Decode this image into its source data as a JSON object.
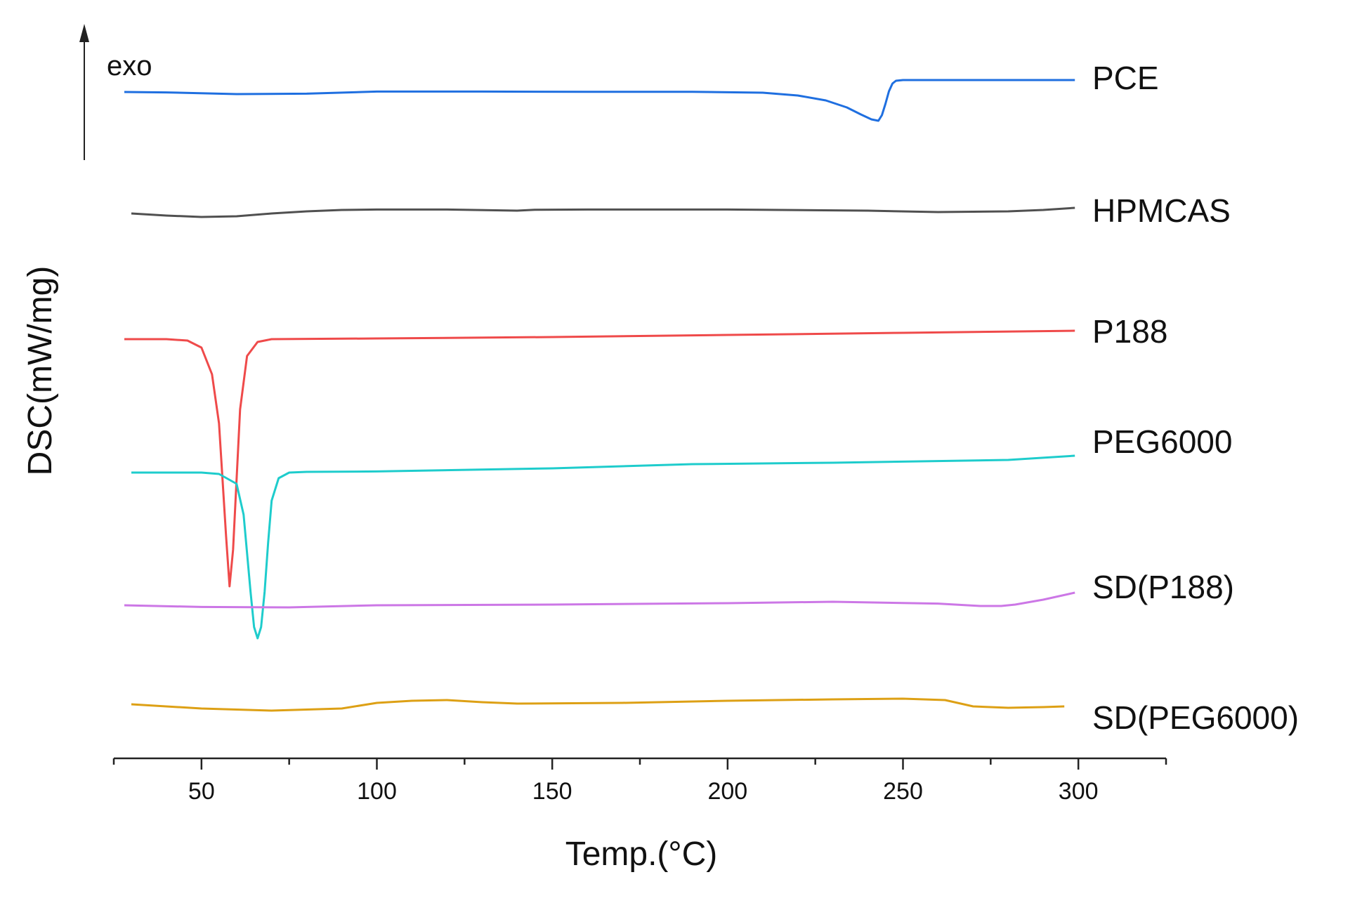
{
  "chart_data": {
    "type": "line",
    "title": "",
    "xlabel": "Temp.(°C)",
    "ylabel": "DSC(mW/mg)",
    "exo_label": "exo",
    "xlim": [
      25,
      325
    ],
    "xticks": [
      50,
      100,
      150,
      200,
      250,
      300
    ],
    "xtick_labels": [
      "50",
      "100",
      "150",
      "200",
      "250",
      "300"
    ],
    "grid": false,
    "series": [
      {
        "name": "PCE",
        "color": "#1f6fe0",
        "offset": 0,
        "x": [
          28,
          40,
          60,
          80,
          100,
          130,
          160,
          190,
          210,
          220,
          228,
          234,
          238,
          241,
          243,
          244,
          245,
          246,
          247,
          248,
          250,
          260,
          280,
          299
        ],
        "y": [
          1.5,
          1.2,
          0.0,
          0.3,
          1.8,
          1.8,
          1.6,
          1.6,
          1.0,
          -1.0,
          -4.5,
          -9.5,
          -14.5,
          -18.0,
          -19.0,
          -15.0,
          -7.0,
          2.0,
          7.5,
          9.5,
          10.0,
          10.0,
          10.0,
          10.0
        ]
      },
      {
        "name": "HPMCAS",
        "color": "#505050",
        "offset": 1,
        "x": [
          30,
          40,
          50,
          60,
          70,
          80,
          90,
          100,
          120,
          140,
          145,
          160,
          200,
          240,
          260,
          280,
          290,
          299
        ],
        "y": [
          0.0,
          -1.5,
          -2.5,
          -2.0,
          0.0,
          1.5,
          2.5,
          2.8,
          2.8,
          2.0,
          2.6,
          2.8,
          2.8,
          2.0,
          1.0,
          1.5,
          2.5,
          4.0
        ]
      },
      {
        "name": "P188",
        "color": "#ef4a4a",
        "offset": 2,
        "x": [
          28,
          40,
          46,
          50,
          53,
          55,
          56,
          57,
          58,
          59,
          60,
          61,
          63,
          66,
          70,
          100,
          150,
          200,
          250,
          299
        ],
        "y": [
          0.0,
          0.0,
          -1.0,
          -6.0,
          -25.0,
          -60.0,
          -100.0,
          -140.0,
          -176.0,
          -150.0,
          -100.0,
          -50.0,
          -12.0,
          -2.0,
          0.0,
          0.5,
          1.5,
          3.0,
          4.5,
          6.0
        ]
      },
      {
        "name": "PEG6000",
        "color": "#1ecccc",
        "offset": 3,
        "x": [
          30,
          50,
          55,
          60,
          62,
          64,
          65,
          66,
          67,
          68,
          69,
          70,
          72,
          75,
          80,
          100,
          150,
          190,
          230,
          280,
          299
        ],
        "y": [
          0.0,
          0.0,
          -1.0,
          -8.0,
          -30.0,
          -85.0,
          -110.0,
          -118.0,
          -110.0,
          -85.0,
          -50.0,
          -20.0,
          -4.0,
          0.0,
          0.5,
          0.8,
          3.0,
          6.0,
          7.0,
          9.0,
          12.0
        ]
      },
      {
        "name": "SD(P188)",
        "color": "#cc77e6",
        "offset": 4,
        "x": [
          28,
          50,
          75,
          100,
          150,
          200,
          230,
          260,
          272,
          278,
          282,
          290,
          299
        ],
        "y": [
          0.0,
          -1.2,
          -1.5,
          0.0,
          0.5,
          1.5,
          2.5,
          1.2,
          -0.5,
          -0.5,
          0.5,
          4.0,
          9.0
        ]
      },
      {
        "name": "SD(PEG6000)",
        "color": "#dda015",
        "offset": 5,
        "x": [
          30,
          50,
          70,
          90,
          100,
          110,
          120,
          130,
          140,
          170,
          200,
          230,
          250,
          262,
          270,
          280,
          290,
          296
        ],
        "y": [
          0.0,
          -3.0,
          -4.5,
          -3.0,
          1.0,
          2.5,
          3.0,
          1.5,
          0.5,
          1.0,
          2.5,
          3.5,
          4.0,
          3.0,
          -1.5,
          -2.5,
          -2.0,
          -1.5
        ]
      }
    ]
  }
}
